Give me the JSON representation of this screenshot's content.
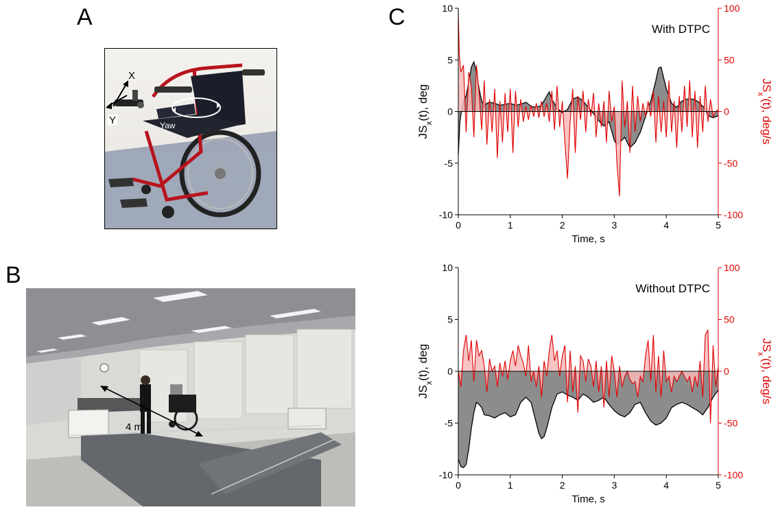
{
  "panels": {
    "a": "A",
    "b": "B",
    "c": "C"
  },
  "photo_a": {
    "axis_x": "X",
    "axis_y": "Y",
    "yaw": "Yaw"
  },
  "photo_b": {
    "distance": "4 m"
  },
  "colors": {
    "left_series": "#000000",
    "left_fill": "#8c8c8c",
    "right_series": "#e00000",
    "right_fill": "#f6b8b8"
  },
  "chart_data": [
    {
      "type": "area",
      "annotation": "With DTPC",
      "xlabel": "Time, s",
      "ylabel_left": "JSx(t), deg",
      "ylabel_right": "JSx'(t), deg/s",
      "xlim": [
        0,
        5
      ],
      "ylim_left": [
        -10,
        10
      ],
      "ylim_right": [
        -100,
        100
      ],
      "xticks": [
        "0",
        "1",
        "2",
        "3",
        "4",
        "5"
      ],
      "yticks_left": [
        "10",
        "5",
        "0",
        "-5",
        "-10"
      ],
      "yticks_right": [
        "100",
        "50",
        "0",
        "-50",
        "-100"
      ],
      "series": [
        {
          "axis": "left",
          "x": [
            0.0,
            0.03,
            0.06,
            0.1,
            0.15,
            0.2,
            0.25,
            0.3,
            0.35,
            0.4,
            0.45,
            0.5,
            0.55,
            0.6,
            0.7,
            0.8,
            0.9,
            1.0,
            1.1,
            1.2,
            1.3,
            1.4,
            1.5,
            1.6,
            1.7,
            1.75,
            1.8,
            1.9,
            2.0,
            2.1,
            2.2,
            2.3,
            2.4,
            2.5,
            2.6,
            2.7,
            2.8,
            2.9,
            3.0,
            3.05,
            3.1,
            3.2,
            3.3,
            3.4,
            3.5,
            3.6,
            3.65,
            3.7,
            3.8,
            3.85,
            3.9,
            4.0,
            4.1,
            4.2,
            4.3,
            4.4,
            4.5,
            4.6,
            4.7,
            4.75,
            4.8,
            4.9,
            5.0
          ],
          "values": [
            -4.2,
            -1.0,
            0.0,
            1.0,
            1.5,
            2.8,
            4.3,
            4.8,
            3.8,
            2.2,
            1.0,
            0.5,
            0.8,
            0.9,
            0.8,
            0.6,
            0.7,
            0.8,
            0.6,
            0.7,
            0.9,
            0.5,
            0.4,
            0.6,
            1.5,
            1.9,
            1.2,
            0.3,
            -0.1,
            0.2,
            1.2,
            1.4,
            1.0,
            0.4,
            -0.2,
            -0.9,
            -1.4,
            -1.0,
            -2.8,
            -3.2,
            -3.0,
            -2.5,
            -3.5,
            -3.0,
            -2.0,
            -0.5,
            0.3,
            1.0,
            3.0,
            4.2,
            4.3,
            2.2,
            0.8,
            0.4,
            1.0,
            1.2,
            1.2,
            1.0,
            0.5,
            0.3,
            -0.4,
            -0.6,
            -0.4
          ]
        },
        {
          "axis": "right",
          "x": [
            0.0,
            0.02,
            0.05,
            0.1,
            0.15,
            0.2,
            0.25,
            0.3,
            0.35,
            0.4,
            0.45,
            0.5,
            0.55,
            0.6,
            0.65,
            0.7,
            0.75,
            0.8,
            0.85,
            0.9,
            0.95,
            1.0,
            1.05,
            1.1,
            1.15,
            1.2,
            1.25,
            1.3,
            1.35,
            1.4,
            1.45,
            1.5,
            1.55,
            1.6,
            1.65,
            1.7,
            1.75,
            1.8,
            1.85,
            1.9,
            1.95,
            2.0,
            2.05,
            2.1,
            2.15,
            2.2,
            2.25,
            2.3,
            2.35,
            2.4,
            2.45,
            2.5,
            2.55,
            2.6,
            2.65,
            2.7,
            2.75,
            2.8,
            2.85,
            2.9,
            2.95,
            3.0,
            3.05,
            3.1,
            3.15,
            3.2,
            3.25,
            3.3,
            3.35,
            3.4,
            3.45,
            3.5,
            3.55,
            3.6,
            3.65,
            3.7,
            3.75,
            3.8,
            3.85,
            3.9,
            3.95,
            4.0,
            4.05,
            4.1,
            4.15,
            4.2,
            4.25,
            4.3,
            4.35,
            4.4,
            4.45,
            4.5,
            4.55,
            4.6,
            4.65,
            4.7,
            4.75,
            4.8,
            4.85,
            4.9,
            4.95,
            5.0
          ],
          "values": [
            98,
            55,
            38,
            45,
            -20,
            38,
            25,
            -25,
            45,
            18,
            -18,
            30,
            -32,
            12,
            -20,
            22,
            -45,
            10,
            -30,
            18,
            -20,
            22,
            -40,
            20,
            -15,
            12,
            -10,
            5,
            -8,
            6,
            -5,
            8,
            -6,
            10,
            -5,
            8,
            -10,
            20,
            -18,
            25,
            -15,
            10,
            -30,
            -65,
            -10,
            22,
            -40,
            15,
            -8,
            20,
            -20,
            12,
            -5,
            18,
            -25,
            8,
            -15,
            10,
            -30,
            20,
            -10,
            5,
            -50,
            -82,
            30,
            -15,
            10,
            -40,
            25,
            -20,
            15,
            -10,
            8,
            -5,
            10,
            -5,
            20,
            -30,
            15,
            -20,
            10,
            -25,
            30,
            -20,
            10,
            -35,
            15,
            -20,
            25,
            -15,
            30,
            -25,
            20,
            -35,
            15,
            -20,
            25,
            -10,
            12,
            -5,
            0,
            2
          ]
        }
      ]
    },
    {
      "type": "area",
      "annotation": "Without DTPC",
      "xlabel": "Time, s",
      "ylabel_left": "JSx(t), deg",
      "ylabel_right": "JSx'(t), deg/s",
      "xlim": [
        0,
        5
      ],
      "ylim_left": [
        -10,
        10
      ],
      "ylim_right": [
        -100,
        100
      ],
      "xticks": [
        "0",
        "1",
        "2",
        "3",
        "4",
        "5"
      ],
      "yticks_left": [
        "10",
        "5",
        "0",
        "-5",
        "-10"
      ],
      "yticks_right": [
        "100",
        "50",
        "0",
        "-50",
        "-100"
      ],
      "series": [
        {
          "axis": "left",
          "x": [
            0.0,
            0.05,
            0.1,
            0.15,
            0.2,
            0.25,
            0.3,
            0.35,
            0.4,
            0.45,
            0.5,
            0.6,
            0.7,
            0.8,
            0.9,
            1.0,
            1.1,
            1.2,
            1.3,
            1.4,
            1.5,
            1.55,
            1.6,
            1.65,
            1.7,
            1.8,
            1.9,
            2.0,
            2.1,
            2.2,
            2.3,
            2.4,
            2.5,
            2.6,
            2.7,
            2.8,
            2.9,
            3.0,
            3.1,
            3.2,
            3.3,
            3.4,
            3.5,
            3.6,
            3.7,
            3.8,
            3.9,
            4.0,
            4.1,
            4.2,
            4.3,
            4.4,
            4.5,
            4.6,
            4.7,
            4.8,
            4.9,
            5.0
          ],
          "values": [
            -8.5,
            -9.2,
            -9.3,
            -9.0,
            -7.5,
            -5.5,
            -4.0,
            -3.0,
            -3.2,
            -3.5,
            -4.2,
            -4.3,
            -4.5,
            -4.2,
            -4.0,
            -4.4,
            -4.2,
            -3.0,
            -2.5,
            -3.0,
            -5.0,
            -6.0,
            -6.5,
            -6.3,
            -5.5,
            -3.5,
            -2.2,
            -2.0,
            -2.3,
            -2.5,
            -2.8,
            -2.2,
            -2.5,
            -3.0,
            -2.8,
            -2.5,
            -3.2,
            -3.8,
            -4.2,
            -4.4,
            -4.0,
            -3.2,
            -3.0,
            -4.0,
            -4.8,
            -5.2,
            -5.0,
            -4.5,
            -3.5,
            -3.2,
            -3.0,
            -3.2,
            -3.5,
            -3.8,
            -4.2,
            -3.5,
            -2.5,
            -1.8
          ]
        },
        {
          "axis": "right",
          "x": [
            0.0,
            0.05,
            0.1,
            0.15,
            0.2,
            0.25,
            0.3,
            0.35,
            0.4,
            0.45,
            0.5,
            0.55,
            0.6,
            0.65,
            0.7,
            0.75,
            0.8,
            0.85,
            0.9,
            0.95,
            1.0,
            1.05,
            1.1,
            1.15,
            1.2,
            1.25,
            1.3,
            1.35,
            1.4,
            1.45,
            1.5,
            1.55,
            1.6,
            1.65,
            1.7,
            1.75,
            1.8,
            1.85,
            1.9,
            1.95,
            2.0,
            2.05,
            2.1,
            2.15,
            2.2,
            2.25,
            2.3,
            2.35,
            2.4,
            2.45,
            2.5,
            2.55,
            2.6,
            2.65,
            2.7,
            2.75,
            2.8,
            2.85,
            2.9,
            2.95,
            3.0,
            3.05,
            3.1,
            3.15,
            3.2,
            3.25,
            3.3,
            3.35,
            3.4,
            3.45,
            3.5,
            3.55,
            3.6,
            3.65,
            3.7,
            3.75,
            3.8,
            3.85,
            3.9,
            3.95,
            4.0,
            4.05,
            4.1,
            4.15,
            4.2,
            4.25,
            4.3,
            4.35,
            4.4,
            4.45,
            4.5,
            4.55,
            4.6,
            4.65,
            4.7,
            4.75,
            4.8,
            4.85,
            4.9,
            4.95,
            5.0
          ],
          "values": [
            0,
            -15,
            20,
            35,
            10,
            30,
            -10,
            30,
            15,
            20,
            5,
            -20,
            12,
            0,
            5,
            -15,
            8,
            -5,
            10,
            -8,
            10,
            20,
            5,
            25,
            15,
            8,
            -5,
            25,
            -10,
            0,
            -15,
            5,
            -25,
            10,
            -5,
            20,
            35,
            10,
            20,
            -5,
            15,
            25,
            -30,
            20,
            -20,
            5,
            -40,
            15,
            10,
            -10,
            12,
            5,
            -15,
            10,
            -20,
            5,
            -35,
            10,
            -25,
            15,
            0,
            -25,
            5,
            -15,
            -5,
            0,
            -8,
            -12,
            -10,
            -25,
            -5,
            -10,
            15,
            30,
            -10,
            35,
            -20,
            15,
            -25,
            20,
            -10,
            -5,
            -20,
            -5,
            -10,
            -5,
            0,
            -5,
            -10,
            -5,
            -20,
            -5,
            -15,
            10,
            -25,
            35,
            40,
            -50,
            25,
            -15,
            5
          ]
        }
      ]
    }
  ]
}
